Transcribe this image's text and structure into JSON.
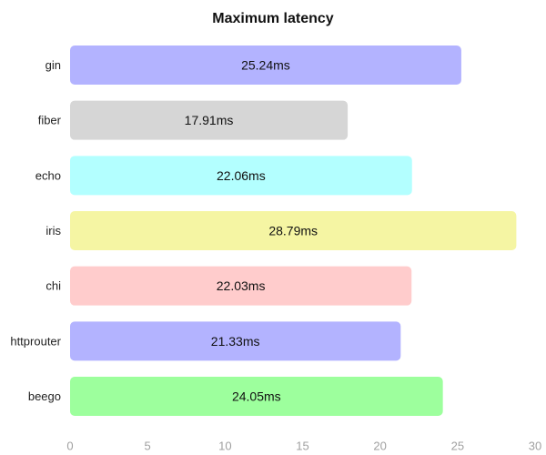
{
  "chart_data": {
    "type": "bar",
    "orientation": "horizontal",
    "title": "Maximum latency",
    "xlabel": "",
    "ylabel": "",
    "categories": [
      "gin",
      "fiber",
      "echo",
      "iris",
      "chi",
      "httprouter",
      "beego"
    ],
    "values": [
      25.24,
      17.91,
      22.06,
      28.79,
      22.03,
      21.33,
      24.05
    ],
    "value_labels": [
      "25.24ms",
      "17.91ms",
      "22.06ms",
      "28.79ms",
      "22.03ms",
      "21.33ms",
      "24.05ms"
    ],
    "colors": [
      "#b3b3ff",
      "#d6d6d6",
      "#b3ffff",
      "#f5f5a3",
      "#ffcccc",
      "#b3b3ff",
      "#9dff9d"
    ],
    "xlim": [
      0,
      30
    ],
    "xticks": [
      0,
      5,
      10,
      15,
      20,
      25,
      30
    ],
    "xtick_labels": [
      "0",
      "5",
      "10",
      "15",
      "20",
      "25",
      "30"
    ],
    "grid": false,
    "legend": "none"
  }
}
